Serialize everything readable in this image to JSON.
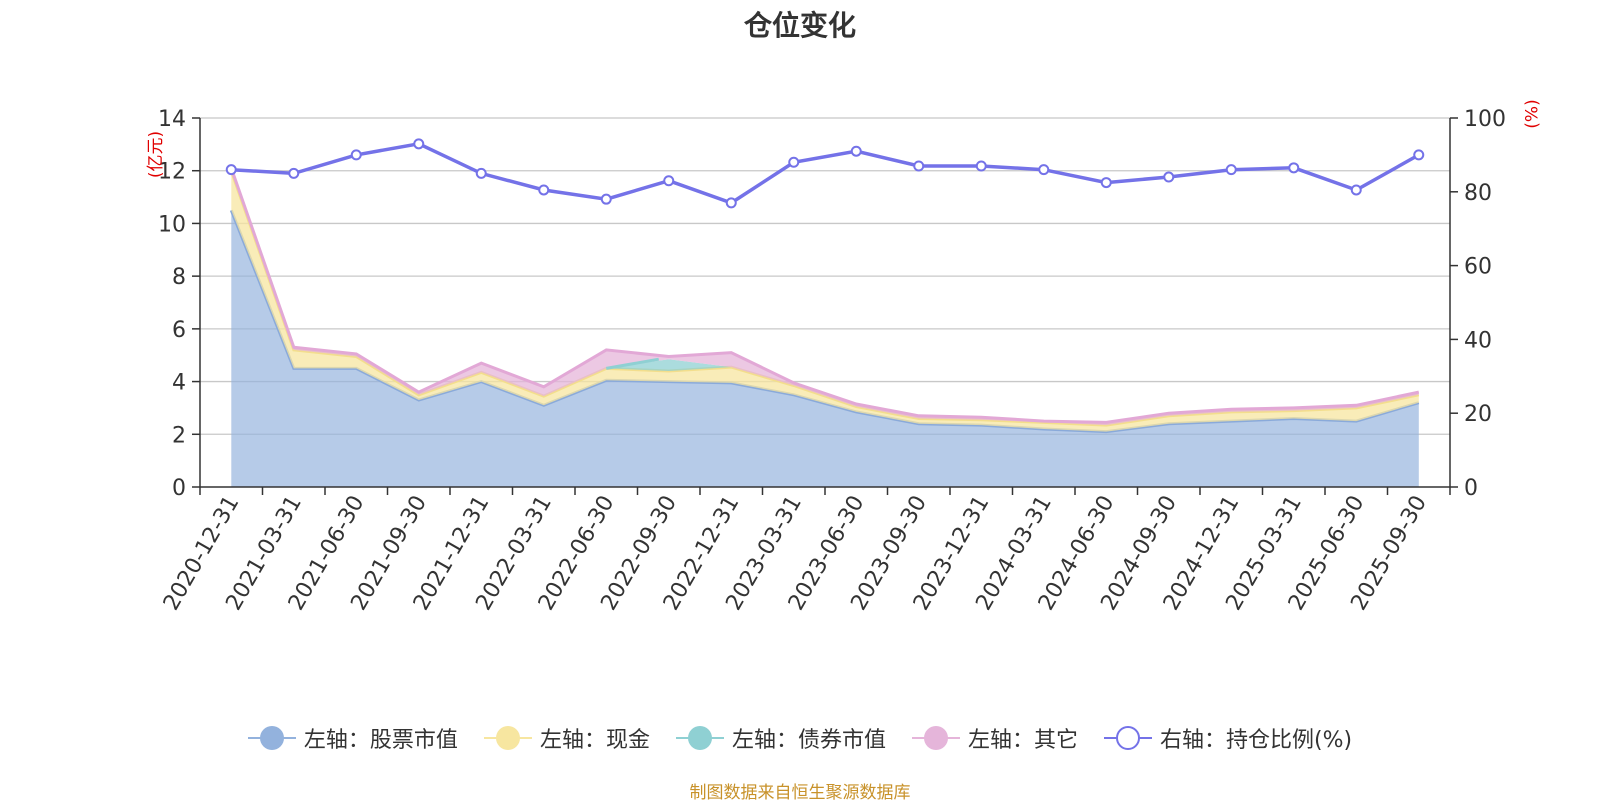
{
  "title": "仓位变化",
  "source_text": "制图数据来自恒生聚源数据库",
  "colors": {
    "stock": "#93b2dd",
    "cash": "#f7e6a0",
    "bond": "#8fd0d3",
    "other": "#e5b5da",
    "ratio": "#7472e8",
    "axis_unit": "#e00000",
    "source": "#c8922a"
  },
  "chart_data": {
    "type": "area",
    "title": "仓位变化",
    "x": [
      "2020-12-31",
      "2021-03-31",
      "2021-06-30",
      "2021-09-30",
      "2021-12-31",
      "2022-03-31",
      "2022-06-30",
      "2022-09-30",
      "2022-12-31",
      "2023-03-31",
      "2023-06-30",
      "2023-09-30",
      "2023-12-31",
      "2024-03-31",
      "2024-06-30",
      "2024-09-30",
      "2024-12-31",
      "2025-03-31",
      "2025-06-30",
      "2025-09-30"
    ],
    "left_axis": {
      "label": "(亿元)",
      "ylim": [
        0,
        14
      ],
      "ticks": [
        0,
        2,
        4,
        6,
        8,
        10,
        12,
        14
      ]
    },
    "right_axis": {
      "label": "(%)",
      "ylim": [
        0,
        100
      ],
      "ticks": [
        0,
        20,
        40,
        60,
        80,
        100
      ]
    },
    "stacked_series": [
      {
        "name": "左轴：股票市值",
        "axis": "left",
        "values": [
          10.5,
          4.5,
          4.5,
          3.3,
          4.0,
          3.1,
          4.05,
          4.0,
          3.95,
          3.5,
          2.85,
          2.4,
          2.35,
          2.2,
          2.1,
          2.4,
          2.5,
          2.6,
          2.5,
          3.2
        ]
      },
      {
        "name": "左轴：现金",
        "axis": "left",
        "values": [
          1.5,
          0.7,
          0.45,
          0.2,
          0.35,
          0.35,
          0.45,
          0.4,
          0.6,
          0.35,
          0.2,
          0.2,
          0.2,
          0.25,
          0.25,
          0.3,
          0.35,
          0.3,
          0.5,
          0.3
        ]
      },
      {
        "name": "左轴：债券市值",
        "axis": "left",
        "values": [
          0,
          0,
          0,
          0,
          0,
          0,
          0,
          0.45,
          0,
          0,
          0,
          0,
          0,
          0,
          0,
          0,
          0,
          0,
          0,
          0
        ]
      },
      {
        "name": "左轴：其它",
        "axis": "left",
        "values": [
          0.1,
          0.1,
          0.1,
          0.1,
          0.35,
          0.35,
          0.7,
          0.1,
          0.55,
          0.1,
          0.1,
          0.1,
          0.1,
          0.05,
          0.1,
          0.1,
          0.1,
          0.1,
          0.1,
          0.1
        ]
      }
    ],
    "line_series": [
      {
        "name": "右轴：持仓比例(%)",
        "axis": "right",
        "values": [
          86,
          85,
          90,
          93,
          85,
          80.5,
          78,
          83,
          77,
          88,
          91,
          87,
          87,
          86,
          82.5,
          84,
          86,
          86.5,
          80.5,
          90
        ]
      }
    ],
    "legend": [
      "左轴：股票市值",
      "左轴：现金",
      "左轴：债券市值",
      "左轴：其它",
      "右轴：持仓比例(%)"
    ],
    "grid": true,
    "legend_position": "bottom"
  }
}
